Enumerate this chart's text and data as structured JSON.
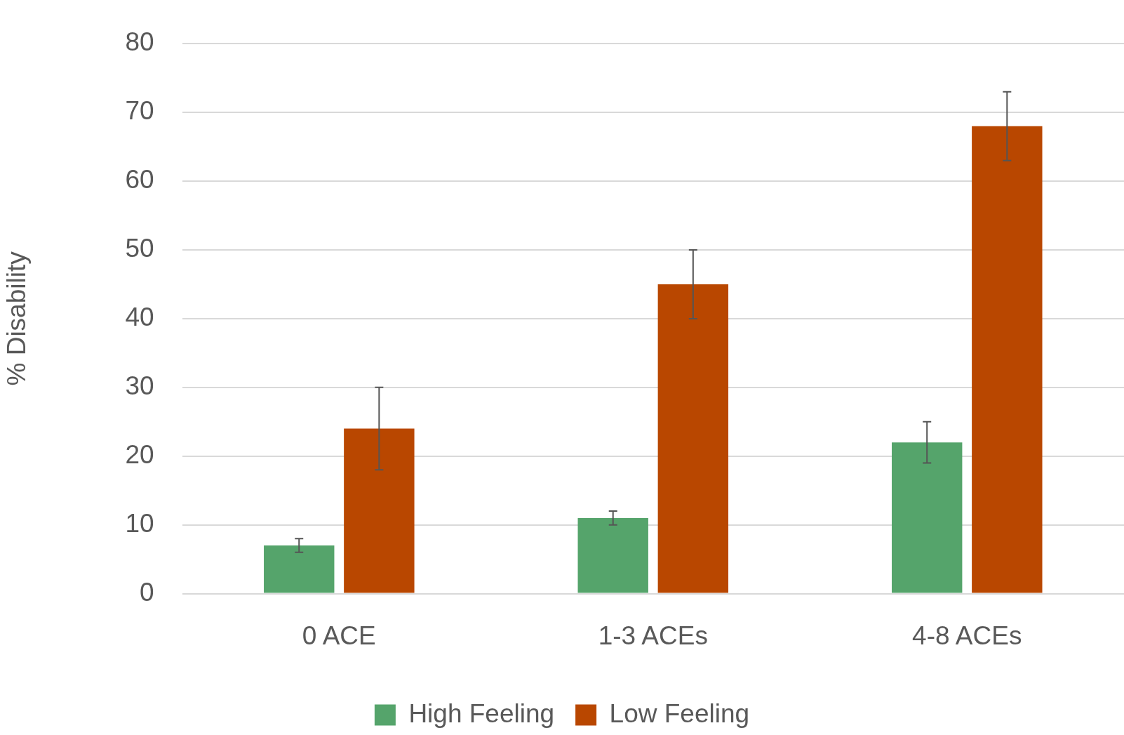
{
  "chart_data": {
    "type": "bar",
    "ylabel": "% Disability",
    "categories": [
      "0 ACE",
      "1-3 ACEs",
      "4-8 ACEs"
    ],
    "series": [
      {
        "name": "High Feeling",
        "color": "#55a46b",
        "values": [
          7,
          11,
          22
        ],
        "errors": [
          1,
          1,
          3
        ]
      },
      {
        "name": "Low Feeling",
        "color": "#b94700",
        "values": [
          24,
          45,
          68
        ],
        "errors": [
          6,
          5,
          5
        ]
      }
    ],
    "ylim": [
      0,
      80
    ],
    "yticks": [
      0,
      10,
      20,
      30,
      40,
      50,
      60,
      70,
      80
    ],
    "grid": "y",
    "legend": "bottom"
  }
}
